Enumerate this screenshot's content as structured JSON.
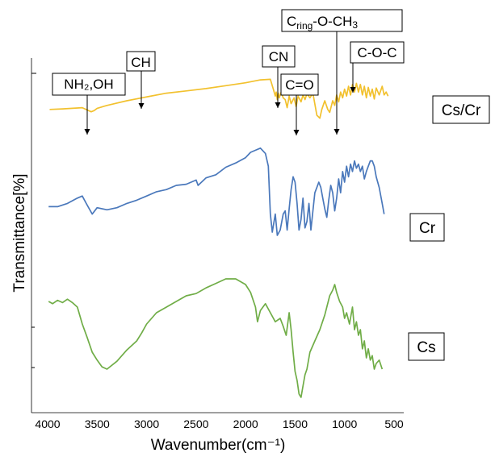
{
  "chart_data": {
    "type": "line",
    "title": "",
    "xlabel": "Wavenumber(cm⁻¹)",
    "ylabel": "Transmittance[%]",
    "xlim": [
      4000,
      500
    ],
    "x_reversed": true,
    "x_ticks": [
      4000,
      3500,
      3000,
      2500,
      2000,
      1500,
      1000,
      500
    ],
    "grid": false,
    "legend_position": "right",
    "series": [
      {
        "name": "Cs/Cr",
        "color": "#f2c12e",
        "x": [
          3980,
          3850,
          3750,
          3650,
          3560,
          3530,
          3500,
          3400,
          3200,
          3050,
          2990,
          2800,
          2600,
          2400,
          2200,
          2000,
          1850,
          1750,
          1720,
          1700,
          1690,
          1680,
          1670,
          1660,
          1640,
          1620,
          1600,
          1580,
          1560,
          1540,
          1510,
          1490,
          1470,
          1440,
          1420,
          1400,
          1380,
          1350,
          1320,
          1280,
          1250,
          1230,
          1200,
          1170,
          1150,
          1120,
          1100,
          1080,
          1060,
          1040,
          1020,
          1000,
          980,
          960,
          940,
          920,
          900,
          880,
          860,
          840,
          820,
          800,
          780,
          760,
          740,
          720,
          700,
          680,
          650,
          620,
          600,
          580,
          560
        ],
        "y": [
          35,
          36,
          37,
          38,
          31,
          33,
          37,
          42,
          50,
          55,
          57,
          63,
          67,
          71,
          76,
          81,
          86,
          87,
          70,
          58,
          65,
          52,
          63,
          55,
          65,
          55,
          52,
          38,
          58,
          45,
          55,
          40,
          58,
          48,
          60,
          52,
          62,
          55,
          63,
          25,
          20,
          35,
          50,
          35,
          30,
          50,
          42,
          60,
          48,
          65,
          55,
          70,
          58,
          75,
          60,
          78,
          65,
          80,
          65,
          78,
          60,
          75,
          55,
          73,
          58,
          70,
          53,
          72,
          60,
          75,
          60,
          65,
          58
        ]
      },
      {
        "name": "Cr",
        "color": "#4a78bb",
        "x": [
          3990,
          3900,
          3800,
          3700,
          3650,
          3610,
          3580,
          3550,
          3500,
          3400,
          3300,
          3200,
          3100,
          3000,
          2900,
          2800,
          2700,
          2600,
          2500,
          2480,
          2400,
          2300,
          2200,
          2100,
          2000,
          1950,
          1900,
          1850,
          1800,
          1770,
          1750,
          1730,
          1700,
          1680,
          1650,
          1620,
          1600,
          1580,
          1560,
          1540,
          1520,
          1500,
          1480,
          1460,
          1440,
          1420,
          1400,
          1380,
          1360,
          1340,
          1320,
          1300,
          1280,
          1260,
          1240,
          1220,
          1200,
          1180,
          1160,
          1140,
          1120,
          1100,
          1080,
          1060,
          1040,
          1020,
          1000,
          980,
          960,
          940,
          920,
          900,
          880,
          860,
          840,
          820,
          800,
          780,
          760,
          740,
          720,
          700,
          680,
          650,
          620,
          600
        ],
        "y": [
          52,
          52,
          55,
          60,
          62,
          55,
          50,
          45,
          51,
          49,
          51,
          55,
          58,
          62,
          66,
          68,
          72,
          73,
          77,
          72,
          79,
          82,
          89,
          93,
          98,
          103,
          105,
          107,
          102,
          90,
          45,
          28,
          45,
          25,
          30,
          45,
          48,
          30,
          50,
          68,
          80,
          75,
          55,
          30,
          40,
          60,
          32,
          38,
          55,
          30,
          48,
          65,
          70,
          75,
          70,
          60,
          50,
          42,
          58,
          72,
          65,
          48,
          60,
          78,
          65,
          85,
          75,
          90,
          80,
          92,
          85,
          95,
          88,
          92,
          85,
          90,
          78,
          85,
          90,
          95,
          95,
          90,
          80,
          70,
          55,
          45
        ]
      },
      {
        "name": "Cs",
        "color": "#70ad47",
        "x": [
          3990,
          3950,
          3900,
          3850,
          3800,
          3750,
          3700,
          3650,
          3600,
          3550,
          3500,
          3450,
          3400,
          3300,
          3200,
          3100,
          3050,
          3000,
          2900,
          2800,
          2700,
          2600,
          2500,
          2400,
          2300,
          2200,
          2100,
          2000,
          1950,
          1900,
          1880,
          1850,
          1800,
          1750,
          1700,
          1650,
          1620,
          1590,
          1560,
          1540,
          1520,
          1500,
          1480,
          1460,
          1440,
          1420,
          1400,
          1380,
          1350,
          1300,
          1250,
          1200,
          1150,
          1120,
          1100,
          1080,
          1050,
          1020,
          1000,
          980,
          950,
          920,
          900,
          880,
          860,
          840,
          820,
          800,
          780,
          760,
          740,
          720,
          700,
          680,
          650,
          620
        ],
        "y": [
          90,
          88,
          91,
          89,
          92,
          89,
          85,
          70,
          58,
          45,
          38,
          32,
          30,
          37,
          47,
          55,
          62,
          70,
          80,
          85,
          90,
          95,
          97,
          102,
          106,
          110,
          110,
          105,
          98,
          85,
          72,
          82,
          88,
          80,
          72,
          75,
          68,
          60,
          80,
          65,
          45,
          28,
          20,
          8,
          5,
          15,
          25,
          30,
          45,
          55,
          65,
          78,
          95,
          100,
          105,
          98,
          90,
          85,
          75,
          80,
          70,
          85,
          65,
          72,
          60,
          65,
          48,
          55,
          40,
          48,
          38,
          42,
          30,
          35,
          38,
          30
        ]
      }
    ],
    "annotations": [
      {
        "text": "NH₂,OH",
        "x": 3530
      },
      {
        "text": "CH",
        "x": 2990
      },
      {
        "text": "CN",
        "x": 1690
      },
      {
        "text": "C=O",
        "x": 1490
      },
      {
        "text": "C ",
        "x": 1150
      },
      {
        "text": "C-O-C",
        "x": 980
      }
    ],
    "cring_label": {
      "main": "C",
      "sub": "ring",
      "rest": "-O-CH",
      "sub2": "3"
    }
  }
}
